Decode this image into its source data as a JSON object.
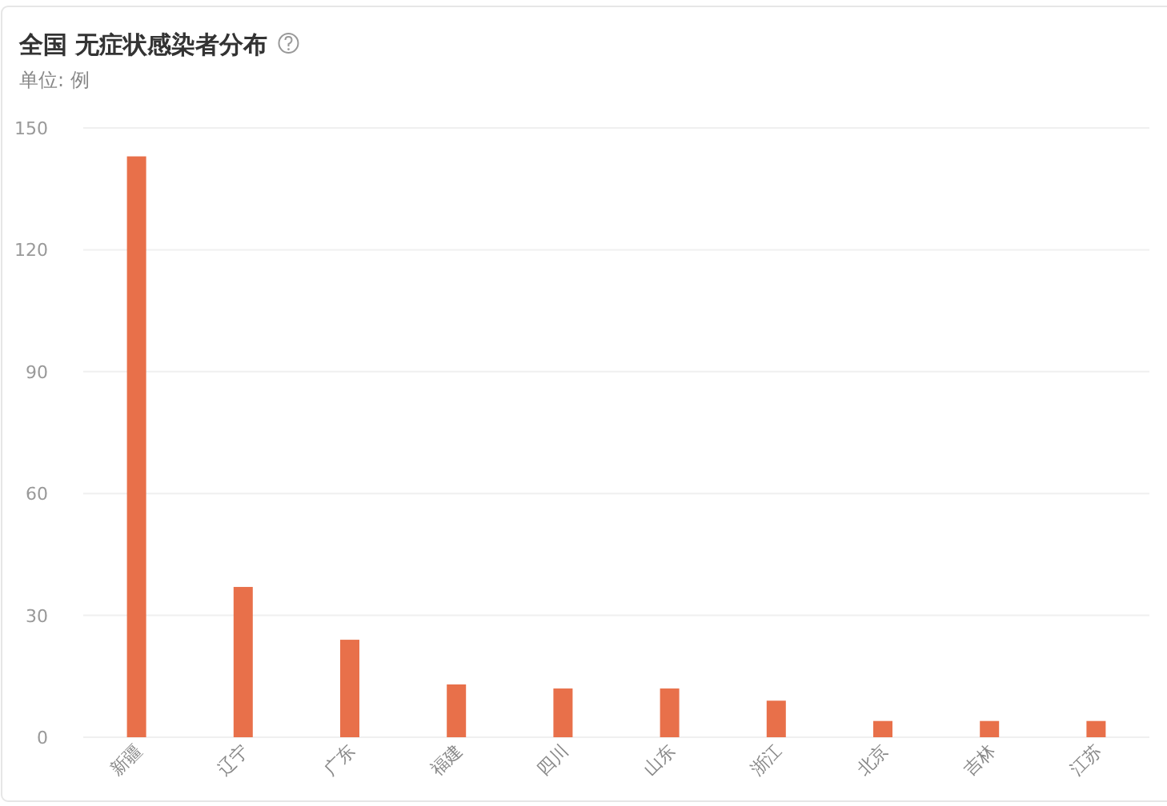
{
  "chart_data": {
    "type": "bar",
    "title": "全国 无症状感染者分布",
    "subtitle": "单位: 例",
    "categories": [
      "新疆",
      "辽宁",
      "广东",
      "福建",
      "四川",
      "山东",
      "浙江",
      "北京",
      "吉林",
      "江苏"
    ],
    "values": [
      143,
      37,
      24,
      13,
      12,
      12,
      9,
      4,
      4,
      4
    ],
    "color": "#e8704a",
    "ylim": [
      0,
      150
    ],
    "yticks": [
      0,
      30,
      60,
      90,
      120,
      150
    ],
    "grid": "y"
  }
}
